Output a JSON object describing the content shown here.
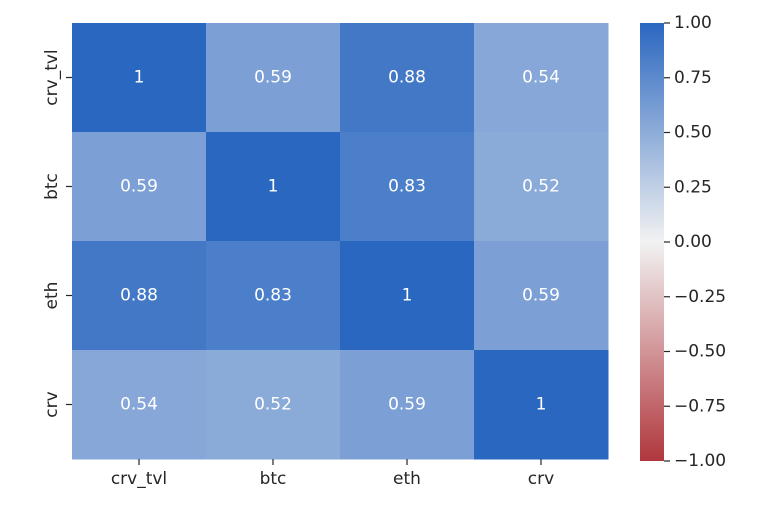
{
  "chart_data": {
    "type": "heatmap",
    "x_labels": [
      "crv_tvl",
      "btc",
      "eth",
      "crv"
    ],
    "y_labels": [
      "crv_tvl",
      "btc",
      "eth",
      "crv"
    ],
    "values": [
      [
        1,
        0.59,
        0.88,
        0.54
      ],
      [
        0.59,
        1,
        0.83,
        0.52
      ],
      [
        0.88,
        0.83,
        1,
        0.59
      ],
      [
        0.54,
        0.52,
        0.59,
        1
      ]
    ],
    "annotations": [
      [
        "1",
        "0.59",
        "0.88",
        "0.54"
      ],
      [
        "0.59",
        "1",
        "0.83",
        "0.52"
      ],
      [
        "0.88",
        "0.83",
        "1",
        "0.59"
      ],
      [
        "0.54",
        "0.52",
        "0.59",
        "1"
      ]
    ],
    "colorbar": {
      "min": -1.0,
      "max": 1.0,
      "ticks": [
        "1.00",
        "0.75",
        "0.50",
        "0.25",
        "0.00",
        "−0.25",
        "−0.50",
        "−0.75",
        "−1.00"
      ],
      "tick_values": [
        1.0,
        0.75,
        0.5,
        0.25,
        0.0,
        -0.25,
        -0.5,
        -0.75,
        -1.0
      ]
    },
    "colormap": {
      "low": "#b0373d",
      "mid": "#f2f2f2",
      "high": "#2a67c0"
    },
    "annotation_color": "#ffffff",
    "text_color": "#262626"
  }
}
